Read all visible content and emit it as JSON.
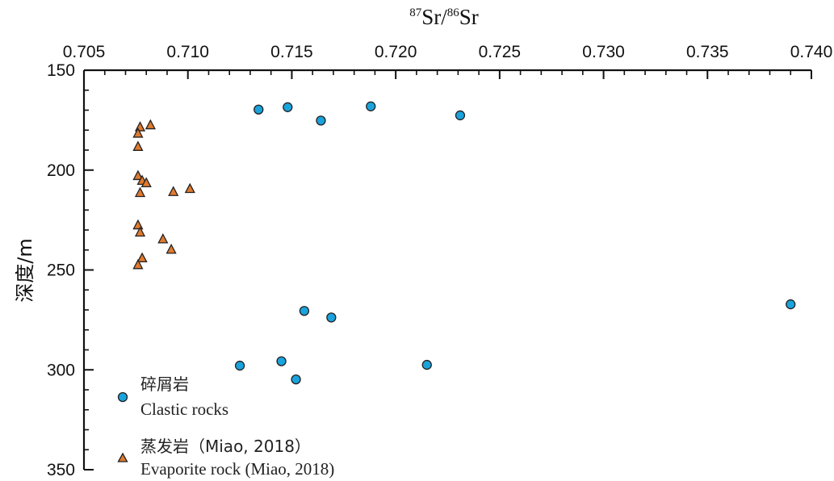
{
  "chart_data": {
    "type": "scatter",
    "title": "",
    "xlabel": {
      "sup1": "87",
      "base1": "Sr/",
      "sup2": "86",
      "base2": "Sr"
    },
    "ylabel": "深度/m",
    "x_axis_position": "top",
    "y_inverted": true,
    "xlim": [
      0.705,
      0.74
    ],
    "ylim": [
      150,
      350
    ],
    "x_ticks": [
      "0.705",
      "0.710",
      "0.715",
      "0.720",
      "0.725",
      "0.730",
      "0.735",
      "0.740"
    ],
    "y_ticks": [
      "150",
      "200",
      "250",
      "300",
      "350"
    ],
    "grid": false,
    "legend_position": "bottom-left",
    "series": [
      {
        "legend_cn": "碎屑岩",
        "legend_en": "Clastic rocks",
        "marker": "circle",
        "color": "#1aa3dc",
        "points": [
          {
            "x": 0.7134,
            "y": 169.7
          },
          {
            "x": 0.7148,
            "y": 168.5
          },
          {
            "x": 0.7164,
            "y": 175.2
          },
          {
            "x": 0.7188,
            "y": 168.1
          },
          {
            "x": 0.7231,
            "y": 172.6
          },
          {
            "x": 0.7156,
            "y": 270.5
          },
          {
            "x": 0.7169,
            "y": 273.8
          },
          {
            "x": 0.739,
            "y": 267.2
          },
          {
            "x": 0.7125,
            "y": 297.9
          },
          {
            "x": 0.7145,
            "y": 295.7
          },
          {
            "x": 0.7152,
            "y": 304.8
          },
          {
            "x": 0.7215,
            "y": 297.5
          }
        ]
      },
      {
        "legend_cn": "蒸发岩（Miao, 2018）",
        "legend_en": "Evaporite rock (Miao, 2018)",
        "marker": "triangle",
        "color": "#e07a2e",
        "points": [
          {
            "x": 0.7082,
            "y": 177.5
          },
          {
            "x": 0.7077,
            "y": 178.5
          },
          {
            "x": 0.7076,
            "y": 181.7
          },
          {
            "x": 0.7076,
            "y": 188.3
          },
          {
            "x": 0.7076,
            "y": 202.9
          },
          {
            "x": 0.7078,
            "y": 205.3
          },
          {
            "x": 0.708,
            "y": 206.5
          },
          {
            "x": 0.7077,
            "y": 211.4
          },
          {
            "x": 0.7093,
            "y": 210.9
          },
          {
            "x": 0.7101,
            "y": 209.4
          },
          {
            "x": 0.7076,
            "y": 227.6
          },
          {
            "x": 0.7077,
            "y": 231.2
          },
          {
            "x": 0.7088,
            "y": 234.6
          },
          {
            "x": 0.7092,
            "y": 239.8
          },
          {
            "x": 0.7078,
            "y": 244.1
          },
          {
            "x": 0.7076,
            "y": 247.5
          }
        ]
      }
    ]
  }
}
